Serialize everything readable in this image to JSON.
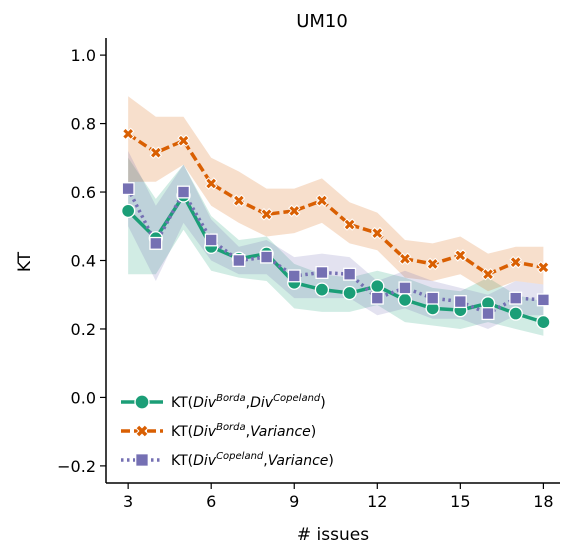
{
  "chart_data": {
    "type": "line",
    "title": "UM10",
    "xlabel": "# issues",
    "ylabel": "KT",
    "xlim": [
      2.2,
      18.6
    ],
    "ylim": [
      -0.25,
      1.05
    ],
    "xticks": [
      3,
      6,
      9,
      12,
      15,
      18
    ],
    "yticks": [
      -0.2,
      0.0,
      0.2,
      0.4,
      0.6,
      0.8,
      1.0
    ],
    "xtick_labels": [
      "3",
      "6",
      "9",
      "12",
      "15",
      "18"
    ],
    "ytick_labels": [
      "−0.2",
      "0.0",
      "0.2",
      "0.4",
      "0.6",
      "0.8",
      "1.0"
    ],
    "grid": false,
    "legend_position": "lower-left",
    "x": [
      3,
      4,
      5,
      6,
      7,
      8,
      9,
      10,
      11,
      12,
      13,
      14,
      15,
      16,
      17,
      18
    ],
    "series": [
      {
        "label_parts": [
          "KT(",
          "Div",
          "Borda",
          ",",
          "Div",
          "Copeland",
          ")"
        ],
        "color": "#1b9e77",
        "marker": "circle",
        "linestyle": "solid",
        "values": [
          0.545,
          0.465,
          0.59,
          0.44,
          0.405,
          0.42,
          0.335,
          0.315,
          0.305,
          0.325,
          0.285,
          0.26,
          0.255,
          0.275,
          0.245,
          0.22
        ],
        "ci_lower": [
          0.36,
          0.36,
          0.49,
          0.37,
          0.35,
          0.34,
          0.26,
          0.25,
          0.25,
          0.27,
          0.22,
          0.21,
          0.2,
          0.22,
          0.2,
          0.18
        ],
        "ci_upper": [
          0.7,
          0.58,
          0.68,
          0.53,
          0.46,
          0.47,
          0.39,
          0.36,
          0.35,
          0.37,
          0.35,
          0.32,
          0.31,
          0.35,
          0.3,
          0.28
        ]
      },
      {
        "label_parts": [
          "KT(",
          "Div",
          "Borda",
          ",",
          "Variance",
          ")"
        ],
        "color": "#d95f02",
        "marker": "x",
        "linestyle": "dashed",
        "values": [
          0.77,
          0.715,
          0.75,
          0.625,
          0.575,
          0.535,
          0.545,
          0.575,
          0.505,
          0.48,
          0.405,
          0.39,
          0.415,
          0.36,
          0.395,
          0.38
        ],
        "ci_lower": [
          0.63,
          0.63,
          0.68,
          0.56,
          0.51,
          0.47,
          0.48,
          0.51,
          0.45,
          0.43,
          0.35,
          0.34,
          0.36,
          0.31,
          0.34,
          0.33
        ],
        "ci_upper": [
          0.88,
          0.82,
          0.82,
          0.7,
          0.66,
          0.61,
          0.61,
          0.64,
          0.57,
          0.54,
          0.46,
          0.45,
          0.47,
          0.42,
          0.44,
          0.44
        ]
      },
      {
        "label_parts": [
          "KT(",
          "Div",
          "Copeland",
          ",",
          "Variance",
          ")"
        ],
        "color": "#7570b3",
        "marker": "square",
        "linestyle": "dotted",
        "values": [
          0.61,
          0.45,
          0.6,
          0.46,
          0.4,
          0.41,
          0.355,
          0.365,
          0.36,
          0.29,
          0.32,
          0.29,
          0.28,
          0.245,
          0.29,
          0.285
        ],
        "ci_lower": [
          0.5,
          0.34,
          0.51,
          0.4,
          0.36,
          0.36,
          0.29,
          0.29,
          0.29,
          0.24,
          0.26,
          0.23,
          0.23,
          0.2,
          0.24,
          0.24
        ],
        "ci_upper": [
          0.72,
          0.56,
          0.68,
          0.52,
          0.44,
          0.46,
          0.41,
          0.42,
          0.41,
          0.34,
          0.37,
          0.34,
          0.32,
          0.3,
          0.34,
          0.33
        ]
      }
    ]
  }
}
